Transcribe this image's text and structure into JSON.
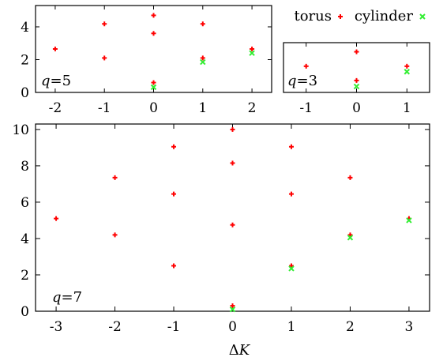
{
  "chart_data": [
    {
      "panel": "q5",
      "type": "scatter",
      "label_prefix": "q",
      "label_value": "=5",
      "x_ticks": [
        -2,
        -1,
        0,
        1,
        2
      ],
      "y_ticks": [
        0,
        2,
        4
      ],
      "xlim": [
        -2.4,
        2.4
      ],
      "ylim": [
        0,
        5.3
      ],
      "series": [
        {
          "name": "torus",
          "color": "#ff0000",
          "marker": "plus",
          "points": [
            [
              -2,
              2.65
            ],
            [
              -1,
              4.18
            ],
            [
              -1,
              2.1
            ],
            [
              0,
              4.7
            ],
            [
              0,
              3.6
            ],
            [
              0,
              0.6
            ],
            [
              1,
              4.18
            ],
            [
              1,
              2.1
            ],
            [
              2,
              2.65
            ]
          ]
        },
        {
          "name": "cylinder",
          "color": "#33ee33",
          "marker": "cross",
          "points": [
            [
              0,
              0.32
            ],
            [
              1,
              1.85
            ],
            [
              2,
              2.4
            ]
          ]
        }
      ]
    },
    {
      "panel": "q3",
      "type": "scatter",
      "label_prefix": "q",
      "label_value": "=3",
      "x_ticks": [
        -1,
        0,
        1
      ],
      "y_ticks": [],
      "xlim": [
        -1.45,
        1.45
      ],
      "ylim": [
        0,
        3.0
      ],
      "series": [
        {
          "name": "torus",
          "color": "#ff0000",
          "marker": "plus",
          "points": [
            [
              -1,
              1.58
            ],
            [
              0,
              2.45
            ],
            [
              0,
              0.72
            ],
            [
              1,
              1.58
            ]
          ]
        },
        {
          "name": "cylinder",
          "color": "#33ee33",
          "marker": "cross",
          "points": [
            [
              0,
              0.36
            ],
            [
              1,
              1.25
            ]
          ]
        }
      ]
    },
    {
      "panel": "q7",
      "type": "scatter",
      "label_prefix": "q",
      "label_value": "=7",
      "xlabel_symbol": "Δ",
      "xlabel_var": "K",
      "x_ticks": [
        -3,
        -2,
        -1,
        0,
        1,
        2,
        3
      ],
      "y_ticks": [
        0,
        2,
        4,
        6,
        8,
        10
      ],
      "xlim": [
        -3.35,
        3.35
      ],
      "ylim": [
        0,
        10.3
      ],
      "series": [
        {
          "name": "torus",
          "color": "#ff0000",
          "marker": "plus",
          "points": [
            [
              -3,
              5.1
            ],
            [
              -2,
              7.35
            ],
            [
              -2,
              4.2
            ],
            [
              -1,
              9.05
            ],
            [
              -1,
              6.45
            ],
            [
              -1,
              2.5
            ],
            [
              0,
              10.0
            ],
            [
              0,
              8.15
            ],
            [
              0,
              4.75
            ],
            [
              0,
              0.3
            ],
            [
              1,
              9.05
            ],
            [
              1,
              6.45
            ],
            [
              1,
              2.5
            ],
            [
              2,
              7.35
            ],
            [
              2,
              4.2
            ],
            [
              3,
              5.1
            ]
          ]
        },
        {
          "name": "cylinder",
          "color": "#33ee33",
          "marker": "cross",
          "points": [
            [
              0,
              0.1
            ],
            [
              1,
              2.35
            ],
            [
              2,
              4.05
            ],
            [
              3,
              5.0
            ]
          ]
        }
      ]
    }
  ],
  "legend": {
    "items": [
      {
        "label": "torus",
        "color": "#ff0000",
        "marker": "plus"
      },
      {
        "label": "cylinder",
        "color": "#33ee33",
        "marker": "cross"
      }
    ]
  }
}
